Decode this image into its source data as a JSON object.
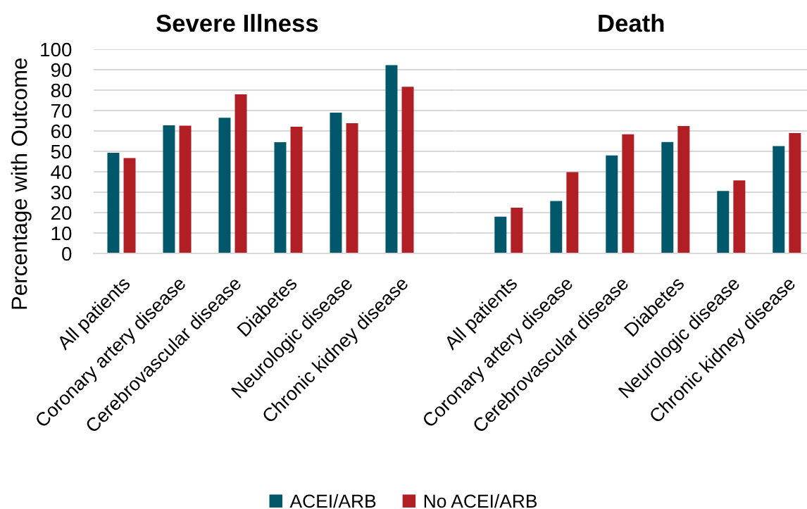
{
  "chart_data": [
    {
      "type": "bar",
      "title": "Severe Illness",
      "ylabel": "Percentage with Outcome",
      "categories": [
        "All patients",
        "Coronary artery disease",
        "Cerebrovascular disease",
        "Diabetes",
        "Neurologic disease",
        "Chronic kidney disease"
      ],
      "series": [
        {
          "name": "ACEI/ARB",
          "color": "#01586b",
          "values": [
            49.3,
            62.8,
            66.5,
            54.5,
            69.0,
            92.2
          ]
        },
        {
          "name": "No ACEI/ARB",
          "color": "#b11e24",
          "values": [
            46.7,
            62.6,
            77.9,
            62.1,
            63.8,
            81.6
          ]
        }
      ],
      "ylim": [
        0,
        100
      ],
      "yticks": [
        0,
        10,
        20,
        30,
        40,
        50,
        60,
        70,
        80,
        90,
        100
      ],
      "grid": "y",
      "legend": "bottom"
    },
    {
      "type": "bar",
      "title": "Death",
      "categories": [
        "All patients",
        "Coronary artery disease",
        "Cerebrovascular disease",
        "Diabetes",
        "Neurologic disease",
        "Chronic kidney disease"
      ],
      "series": [
        {
          "name": "ACEI/ARB",
          "color": "#01586b",
          "values": [
            18.0,
            25.7,
            48.0,
            54.6,
            30.6,
            52.6
          ]
        },
        {
          "name": "No ACEI/ARB",
          "color": "#b11e24",
          "values": [
            22.4,
            39.8,
            58.4,
            62.4,
            35.8,
            59.0
          ]
        }
      ],
      "ylim": [
        0,
        100
      ],
      "yticks": [
        0,
        10,
        20,
        30,
        40,
        50,
        60,
        70,
        80,
        90,
        100
      ],
      "grid": "y",
      "tick_labels": "x"
    }
  ]
}
